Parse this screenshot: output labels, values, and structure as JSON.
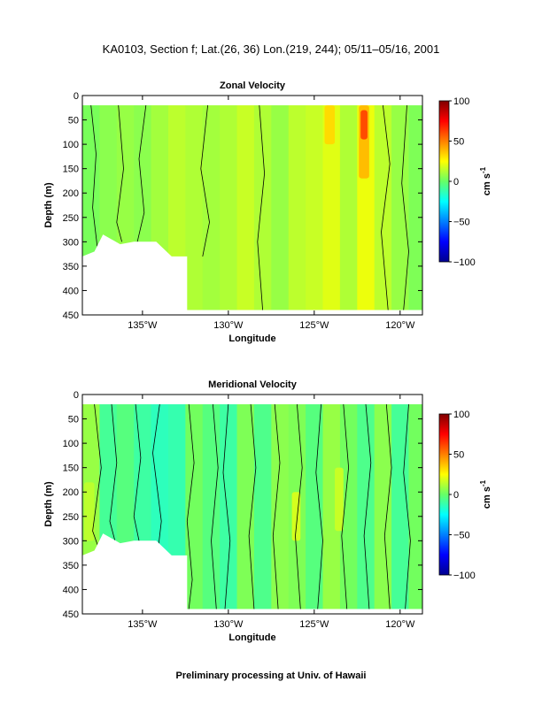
{
  "figure": {
    "title": "KA0103, Section f; Lat.(26, 36) Lon.(219, 244); 05/11–05/16, 2001",
    "footer": "Preliminary processing at Univ. of Hawaii"
  },
  "chart_data": [
    {
      "type": "heatmap",
      "title": "Zonal Velocity",
      "xlabel": "Longitude",
      "ylabel": "Depth (m)",
      "xlim": [
        -138.5,
        -118.7
      ],
      "ylim": [
        450,
        0
      ],
      "x_ticks": [
        -135,
        -130,
        -125,
        -120
      ],
      "x_tick_labels": [
        "135°W",
        "130°W",
        "125°W",
        "120°W"
      ],
      "y_ticks": [
        0,
        50,
        100,
        150,
        200,
        250,
        300,
        350,
        400,
        450
      ],
      "y_tick_labels": [
        "0",
        "50",
        "100",
        "150",
        "200",
        "250",
        "300",
        "350",
        "400",
        "450"
      ],
      "colorbar": {
        "label": "cm s",
        "label_exponent": "-1",
        "range": [
          -100,
          100
        ],
        "ticks": [
          100,
          50,
          0,
          -50,
          -100
        ],
        "tick_labels": [
          "100",
          "50",
          "0",
          "−50",
          "−100"
        ]
      },
      "data_top_depth": 20,
      "no_data_below_depth": [
        [
          -138.5,
          330
        ],
        [
          -137.8,
          320
        ],
        [
          -137.3,
          285
        ],
        [
          -136.3,
          305
        ],
        [
          -135.5,
          300
        ],
        [
          -134.2,
          300
        ],
        [
          -133.3,
          330
        ],
        [
          -132.4,
          330
        ],
        [
          -132.4,
          440
        ]
      ],
      "section_bottom_depth": 440,
      "columns": [
        {
          "lon": -138.0,
          "value": 3
        },
        {
          "lon": -137.0,
          "value": 6
        },
        {
          "lon": -136.0,
          "value": 8
        },
        {
          "lon": -135.0,
          "value": 6
        },
        {
          "lon": -134.0,
          "value": 10
        },
        {
          "lon": -133.0,
          "value": 14
        },
        {
          "lon": -132.0,
          "value": 12
        },
        {
          "lon": -131.0,
          "value": 10
        },
        {
          "lon": -130.0,
          "value": 12
        },
        {
          "lon": -129.0,
          "value": 16
        },
        {
          "lon": -128.0,
          "value": 12
        },
        {
          "lon": -127.0,
          "value": 8
        },
        {
          "lon": -126.0,
          "value": 14
        },
        {
          "lon": -125.0,
          "value": 16
        },
        {
          "lon": -124.0,
          "value": 20
        },
        {
          "lon": -123.0,
          "value": 12
        },
        {
          "lon": -122.0,
          "value": 22
        },
        {
          "lon": -121.0,
          "value": 14
        },
        {
          "lon": -120.0,
          "value": 8
        },
        {
          "lon": -119.0,
          "value": 4
        }
      ],
      "features": [
        {
          "lon": [
            -124.4,
            -123.8
          ],
          "depth": [
            20,
            100
          ],
          "value": 32
        },
        {
          "lon": [
            -122.4,
            -121.8
          ],
          "depth": [
            20,
            170
          ],
          "value": 38
        },
        {
          "lon": [
            -122.3,
            -121.9
          ],
          "depth": [
            30,
            90
          ],
          "value": 60
        }
      ],
      "contours": [
        {
          "lon": [
            -138.0,
            -137.7,
            -137.9,
            -137.6,
            -138.1
          ],
          "depth": [
            20,
            120,
            230,
            320,
            420
          ]
        },
        {
          "lon": [
            -136.4,
            -136.1,
            -136.5,
            -136.2
          ],
          "depth": [
            20,
            150,
            260,
            300
          ]
        },
        {
          "lon": [
            -134.8,
            -135.2,
            -134.9,
            -135.3
          ],
          "depth": [
            20,
            130,
            240,
            300
          ]
        },
        {
          "lon": [
            -131.2,
            -131.6,
            -131.1,
            -131.5
          ],
          "depth": [
            20,
            150,
            260,
            330
          ]
        },
        {
          "lon": [
            -128.2,
            -127.9,
            -128.3,
            -128.0
          ],
          "depth": [
            20,
            160,
            300,
            440
          ]
        },
        {
          "lon": [
            -121.0,
            -120.6,
            -121.1,
            -120.7
          ],
          "depth": [
            20,
            140,
            280,
            440
          ]
        },
        {
          "lon": [
            -119.6,
            -119.9,
            -119.5,
            -119.8
          ],
          "depth": [
            20,
            180,
            320,
            440
          ]
        }
      ]
    },
    {
      "type": "heatmap",
      "title": "Meridional Velocity",
      "xlabel": "Longitude",
      "ylabel": "Depth (m)",
      "xlim": [
        -138.5,
        -118.7
      ],
      "ylim": [
        450,
        0
      ],
      "x_ticks": [
        -135,
        -130,
        -125,
        -120
      ],
      "x_tick_labels": [
        "135°W",
        "130°W",
        "125°W",
        "120°W"
      ],
      "y_ticks": [
        0,
        50,
        100,
        150,
        200,
        250,
        300,
        350,
        400,
        450
      ],
      "y_tick_labels": [
        "0",
        "50",
        "100",
        "150",
        "200",
        "250",
        "300",
        "350",
        "400",
        "450"
      ],
      "colorbar": {
        "label": "cm s",
        "label_exponent": "-1",
        "range": [
          -100,
          100
        ],
        "ticks": [
          100,
          50,
          0,
          -50,
          -100
        ],
        "tick_labels": [
          "100",
          "50",
          "0",
          "−50",
          "−100"
        ]
      },
      "data_top_depth": 20,
      "no_data_below_depth": [
        [
          -138.5,
          330
        ],
        [
          -137.8,
          320
        ],
        [
          -137.3,
          285
        ],
        [
          -136.3,
          305
        ],
        [
          -135.5,
          300
        ],
        [
          -134.2,
          300
        ],
        [
          -133.3,
          330
        ],
        [
          -132.4,
          330
        ],
        [
          -132.4,
          440
        ]
      ],
      "section_bottom_depth": 440,
      "columns": [
        {
          "lon": -138.0,
          "value": 8
        },
        {
          "lon": -137.0,
          "value": -8
        },
        {
          "lon": -136.0,
          "value": -4
        },
        {
          "lon": -135.0,
          "value": -10
        },
        {
          "lon": -134.0,
          "value": -14
        },
        {
          "lon": -133.0,
          "value": -12
        },
        {
          "lon": -132.0,
          "value": 2
        },
        {
          "lon": -131.0,
          "value": -4
        },
        {
          "lon": -130.0,
          "value": -10
        },
        {
          "lon": -129.0,
          "value": 4
        },
        {
          "lon": -128.0,
          "value": -6
        },
        {
          "lon": -127.0,
          "value": 6
        },
        {
          "lon": -126.0,
          "value": 4
        },
        {
          "lon": -125.0,
          "value": -4
        },
        {
          "lon": -124.0,
          "value": 8
        },
        {
          "lon": -123.0,
          "value": 2
        },
        {
          "lon": -122.0,
          "value": -6
        },
        {
          "lon": -121.0,
          "value": 6
        },
        {
          "lon": -120.0,
          "value": -8
        },
        {
          "lon": -119.0,
          "value": 2
        }
      ],
      "features": [
        {
          "lon": [
            -138.4,
            -137.8
          ],
          "depth": [
            180,
            300
          ],
          "value": 14
        },
        {
          "lon": [
            -126.3,
            -125.8
          ],
          "depth": [
            200,
            300
          ],
          "value": 18
        },
        {
          "lon": [
            -123.8,
            -123.3
          ],
          "depth": [
            150,
            280
          ],
          "value": 16
        }
      ],
      "contours": [
        {
          "lon": [
            -137.8,
            -137.4,
            -137.9,
            -137.5
          ],
          "depth": [
            20,
            150,
            280,
            320
          ]
        },
        {
          "lon": [
            -136.8,
            -136.5,
            -136.9,
            -136.6
          ],
          "depth": [
            20,
            140,
            260,
            300
          ]
        },
        {
          "lon": [
            -135.4,
            -135.1,
            -135.5,
            -135.2
          ],
          "depth": [
            20,
            130,
            250,
            300
          ]
        },
        {
          "lon": [
            -134.0,
            -134.4,
            -133.9,
            -134.3,
            -134.0
          ],
          "depth": [
            20,
            120,
            260,
            380,
            440
          ]
        },
        {
          "lon": [
            -132.3,
            -132.0,
            -132.4,
            -132.1,
            -132.3
          ],
          "depth": [
            20,
            140,
            260,
            380,
            440
          ]
        },
        {
          "lon": [
            -130.9,
            -130.6,
            -131.0,
            -130.7
          ],
          "depth": [
            20,
            150,
            300,
            440
          ]
        },
        {
          "lon": [
            -130.0,
            -130.3,
            -129.9,
            -130.2
          ],
          "depth": [
            20,
            160,
            300,
            440
          ]
        },
        {
          "lon": [
            -128.7,
            -128.4,
            -128.8,
            -128.5
          ],
          "depth": [
            20,
            150,
            290,
            440
          ]
        },
        {
          "lon": [
            -127.3,
            -127.0,
            -127.4,
            -127.1
          ],
          "depth": [
            20,
            140,
            290,
            440
          ]
        },
        {
          "lon": [
            -126.0,
            -125.7,
            -126.1,
            -125.8
          ],
          "depth": [
            20,
            150,
            290,
            440
          ]
        },
        {
          "lon": [
            -124.6,
            -124.9,
            -124.5,
            -124.8
          ],
          "depth": [
            20,
            160,
            300,
            440
          ]
        },
        {
          "lon": [
            -123.3,
            -123.0,
            -123.4,
            -123.1
          ],
          "depth": [
            20,
            150,
            290,
            440
          ]
        },
        {
          "lon": [
            -122.0,
            -121.7,
            -122.1,
            -121.8
          ],
          "depth": [
            20,
            140,
            290,
            440
          ]
        },
        {
          "lon": [
            -120.8,
            -120.5,
            -120.9,
            -120.6
          ],
          "depth": [
            20,
            150,
            290,
            440
          ]
        },
        {
          "lon": [
            -119.5,
            -119.8,
            -119.4,
            -119.7
          ],
          "depth": [
            20,
            160,
            300,
            440
          ]
        }
      ]
    }
  ]
}
